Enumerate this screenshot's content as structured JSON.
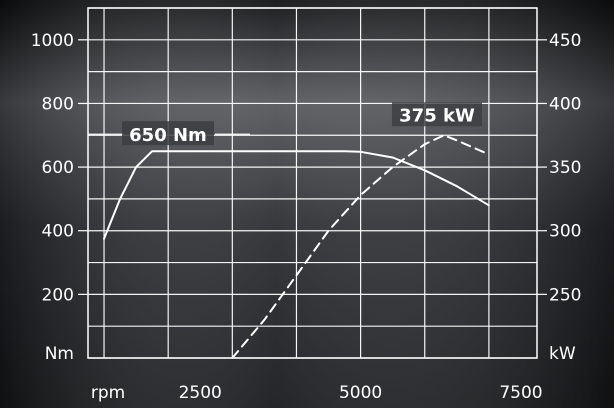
{
  "chart_data": {
    "type": "line",
    "title": "",
    "x_unit": "rpm",
    "xlim": [
      750,
      7750
    ],
    "x_ticks": [
      2500,
      5000,
      7500
    ],
    "y_left": {
      "unit": "Nm",
      "lim": [
        0,
        1100
      ],
      "ticks": [
        200,
        400,
        600,
        800,
        1000
      ]
    },
    "y_right": {
      "unit": "kW",
      "lim": [
        200,
        475
      ],
      "ticks": [
        250,
        300,
        350,
        400,
        450
      ]
    },
    "grid": true,
    "series": [
      {
        "name": "650 Nm",
        "axis": "left",
        "style": "solid",
        "x": [
          1000,
          1250,
          1500,
          1750,
          2000,
          4750,
          5000,
          5500,
          6000,
          6500,
          7000
        ],
        "y": [
          375,
          500,
          600,
          650,
          650,
          650,
          648,
          630,
          590,
          540,
          480
        ]
      },
      {
        "name": "375 kW",
        "axis": "right",
        "style": "dashed",
        "x": [
          3000,
          3500,
          4000,
          4500,
          5000,
          5500,
          6000,
          6300,
          6500,
          7000
        ],
        "y": [
          200,
          230,
          265,
          300,
          328,
          350,
          368,
          375,
          371,
          360
        ]
      }
    ],
    "annotations": [
      {
        "text": "650 Nm",
        "series": 0
      },
      {
        "text": "375 kW",
        "series": 1
      }
    ]
  }
}
